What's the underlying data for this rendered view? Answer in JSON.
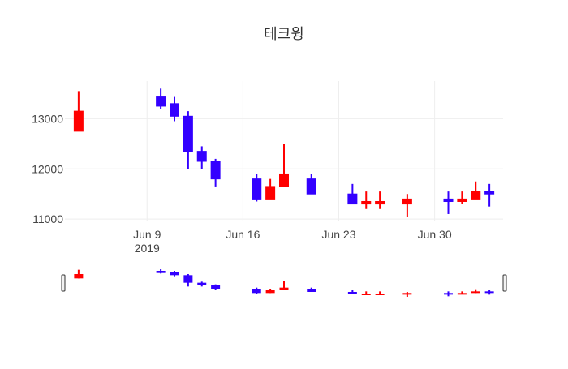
{
  "chart_data": {
    "type": "candlestick",
    "title": "테크윙",
    "xlabel": "",
    "ylabel": "",
    "ylim": [
      10970,
      13750
    ],
    "y_ticks": [
      11000,
      12000,
      13000
    ],
    "y_tick_labels": [
      "11000",
      "12000",
      "13000"
    ],
    "x_range": [
      "2019-06-03",
      "2019-07-05"
    ],
    "x_ticks": [
      "2019-06-09",
      "2019-06-16",
      "2019-06-23",
      "2019-06-30"
    ],
    "x_tick_labels": [
      "Jun 9",
      "Jun 16",
      "Jun 23",
      "Jun 30"
    ],
    "x_year_label": "2019",
    "grid": true,
    "rangeslider": true,
    "increasing_color": "#ff0000",
    "decreasing_color": "#3300ff",
    "candles": [
      {
        "date": "2019-06-04",
        "open": 12750,
        "high": 13550,
        "low": 12750,
        "close": 13150
      },
      {
        "date": "2019-06-10",
        "open": 13450,
        "high": 13600,
        "low": 13200,
        "close": 13250
      },
      {
        "date": "2019-06-11",
        "open": 13300,
        "high": 13450,
        "low": 12950,
        "close": 13050
      },
      {
        "date": "2019-06-12",
        "open": 13050,
        "high": 13150,
        "low": 12000,
        "close": 12350
      },
      {
        "date": "2019-06-13",
        "open": 12350,
        "high": 12450,
        "low": 12000,
        "close": 12150
      },
      {
        "date": "2019-06-14",
        "open": 12150,
        "high": 12200,
        "low": 11650,
        "close": 11800
      },
      {
        "date": "2019-06-17",
        "open": 11800,
        "high": 11900,
        "low": 11350,
        "close": 11400
      },
      {
        "date": "2019-06-18",
        "open": 11400,
        "high": 11800,
        "low": 11400,
        "close": 11650
      },
      {
        "date": "2019-06-19",
        "open": 11650,
        "high": 12500,
        "low": 11650,
        "close": 11900
      },
      {
        "date": "2019-06-21",
        "open": 11800,
        "high": 11900,
        "low": 11500,
        "close": 11500
      },
      {
        "date": "2019-06-24",
        "open": 11500,
        "high": 11700,
        "low": 11300,
        "close": 11300
      },
      {
        "date": "2019-06-25",
        "open": 11300,
        "high": 11550,
        "low": 11200,
        "close": 11350
      },
      {
        "date": "2019-06-26",
        "open": 11300,
        "high": 11550,
        "low": 11200,
        "close": 11350
      },
      {
        "date": "2019-06-28",
        "open": 11300,
        "high": 11500,
        "low": 11050,
        "close": 11400
      },
      {
        "date": "2019-07-01",
        "open": 11400,
        "high": 11550,
        "low": 11100,
        "close": 11350
      },
      {
        "date": "2019-07-02",
        "open": 11350,
        "high": 11550,
        "low": 11300,
        "close": 11400
      },
      {
        "date": "2019-07-03",
        "open": 11400,
        "high": 11750,
        "low": 11400,
        "close": 11550
      },
      {
        "date": "2019-07-04",
        "open": 11550,
        "high": 11700,
        "low": 11250,
        "close": 11500
      }
    ]
  }
}
